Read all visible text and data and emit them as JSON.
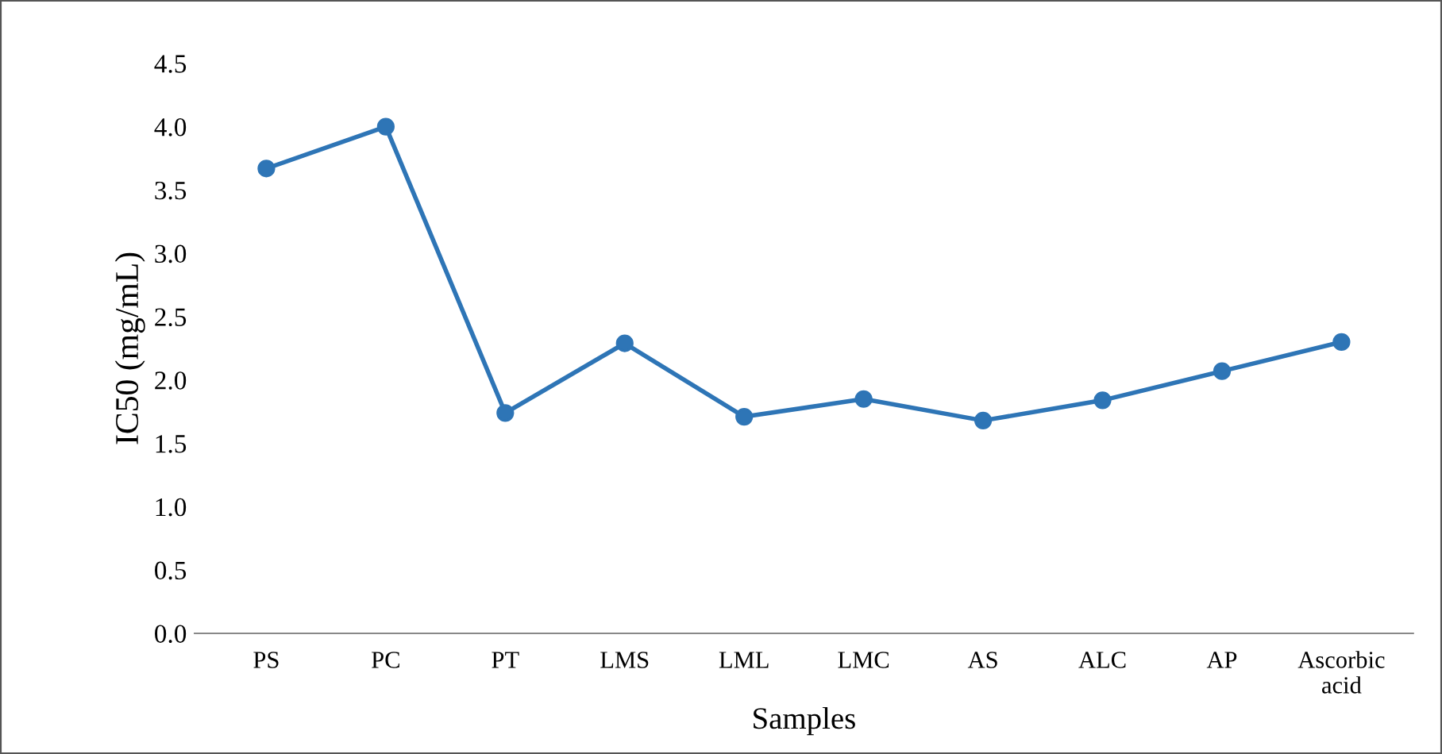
{
  "chart_data": {
    "type": "line",
    "xlabel": "Samples",
    "ylabel": "IC50 (mg/mL)",
    "categories": [
      "PS",
      "PC",
      "PT",
      "LMS",
      "LML",
      "LMC",
      "AS",
      "ALC",
      "AP",
      "Ascorbic acid"
    ],
    "series": [
      {
        "color": "#2e75b6",
        "values": [
          3.67,
          4.0,
          1.74,
          2.29,
          1.71,
          1.85,
          1.68,
          1.84,
          2.07,
          2.3
        ]
      }
    ],
    "ylim": [
      0,
      4.5
    ],
    "yticks": [
      {
        "value": 0,
        "label": "0.0"
      },
      {
        "value": 0.5,
        "label": "0.5"
      },
      {
        "value": 1,
        "label": "1.0"
      },
      {
        "value": 1.5,
        "label": "1.5"
      },
      {
        "value": 2,
        "label": "2.0"
      },
      {
        "value": 2.5,
        "label": "2.5"
      },
      {
        "value": 3,
        "label": "3.0"
      },
      {
        "value": 3.5,
        "label": "3.5"
      },
      {
        "value": 4,
        "label": "4.0"
      },
      {
        "value": 4.5,
        "label": "4.5"
      }
    ],
    "marker": "circle",
    "line_style": "solid",
    "grid": false,
    "legend": false
  }
}
